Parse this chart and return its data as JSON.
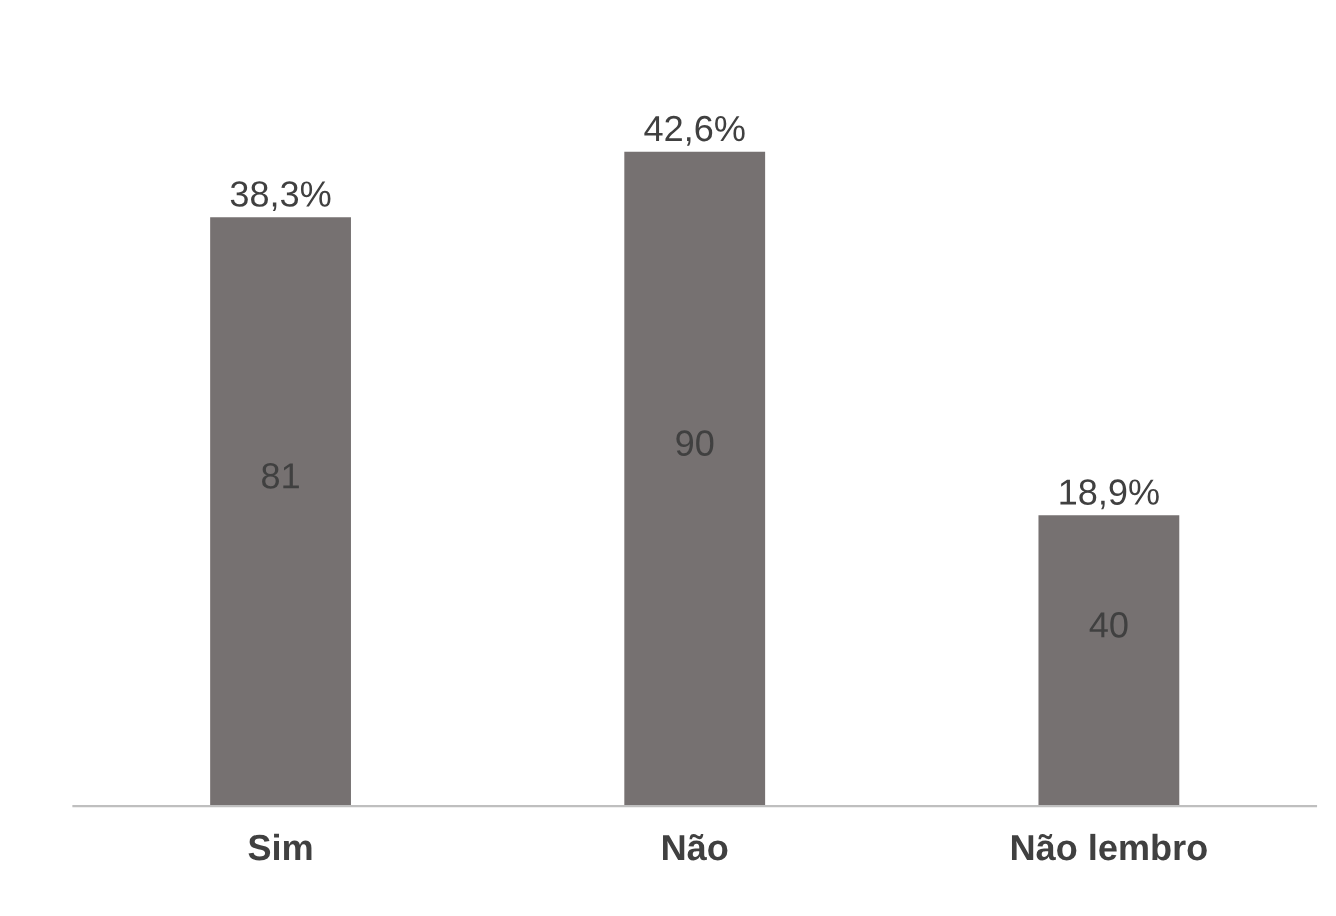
{
  "chart_data": {
    "type": "bar",
    "categories": [
      "Sim",
      "Não",
      "Não lembro"
    ],
    "values": [
      81,
      90,
      40
    ],
    "color": "#767171",
    "data_labels": true,
    "grid": false,
    "legend": false,
    "tick_labels": "x",
    "annotations": [
      {
        "text": "38,3%",
        "x": "Sim",
        "y": 81
      },
      {
        "text": "42,6%",
        "x": "Não",
        "y": 90
      },
      {
        "text": "18,9%",
        "x": "Não lembro",
        "y": 40
      }
    ]
  }
}
